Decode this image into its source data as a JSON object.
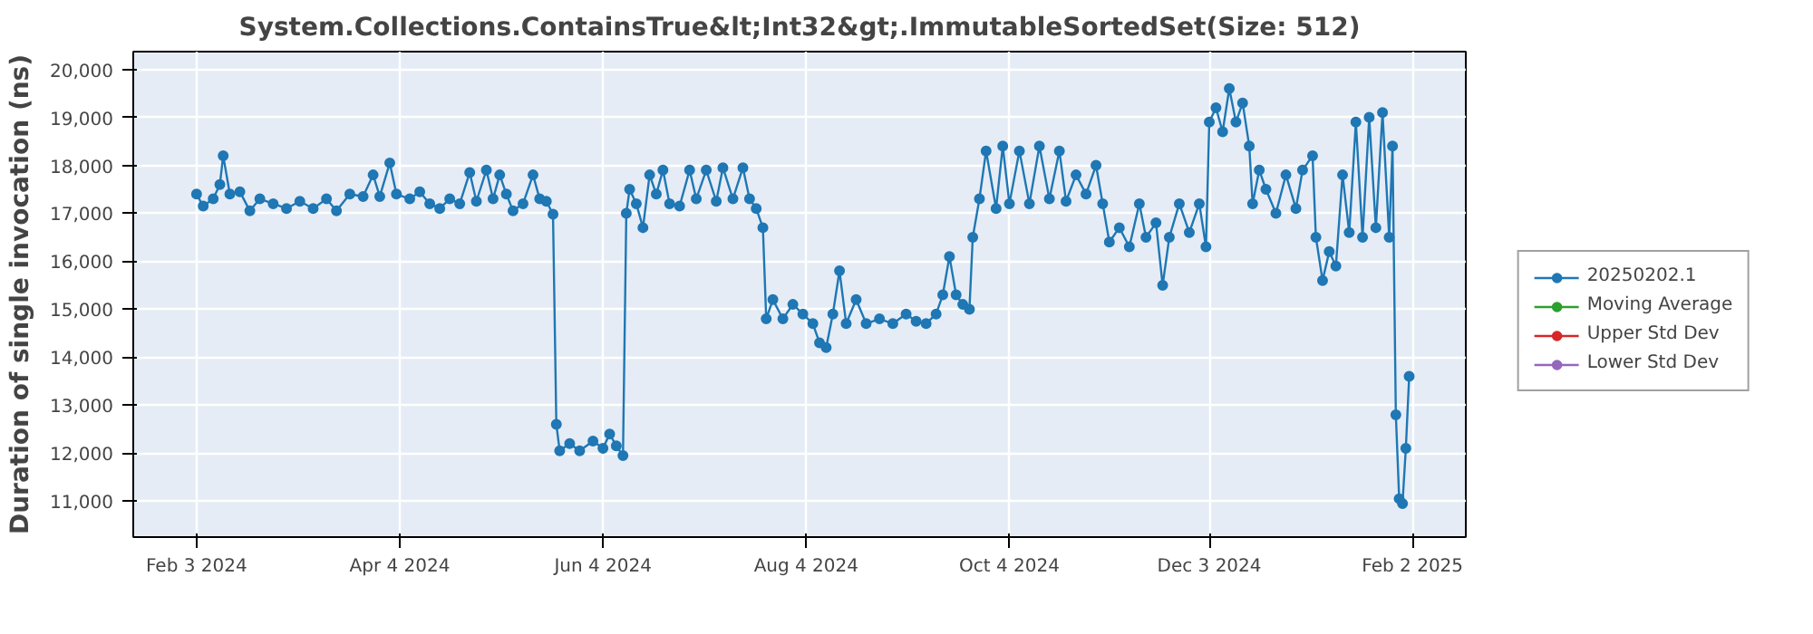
{
  "chart_data": {
    "type": "line",
    "title": "System.Collections.ContainsTrue&lt;Int32&gt;.ImmutableSortedSet(Size: 512)",
    "ylabel": "Duration of single invocation (ns)",
    "x": [
      "2024-02-03",
      "2024-02-05",
      "2024-02-08",
      "2024-02-10",
      "2024-02-11",
      "2024-02-13",
      "2024-02-16",
      "2024-02-19",
      "2024-02-22",
      "2024-02-26",
      "2024-03-01",
      "2024-03-05",
      "2024-03-09",
      "2024-03-13",
      "2024-03-16",
      "2024-03-20",
      "2024-03-24",
      "2024-03-27",
      "2024-03-29",
      "2024-04-01",
      "2024-04-03",
      "2024-04-07",
      "2024-04-10",
      "2024-04-13",
      "2024-04-16",
      "2024-04-19",
      "2024-04-22",
      "2024-04-25",
      "2024-04-27",
      "2024-04-30",
      "2024-05-02",
      "2024-05-04",
      "2024-05-06",
      "2024-05-08",
      "2024-05-11",
      "2024-05-14",
      "2024-05-16",
      "2024-05-18",
      "2024-05-20",
      "2024-05-21",
      "2024-05-22",
      "2024-05-25",
      "2024-05-28",
      "2024-06-01",
      "2024-06-04",
      "2024-06-06",
      "2024-06-08",
      "2024-06-10",
      "2024-06-11",
      "2024-06-12",
      "2024-06-14",
      "2024-06-16",
      "2024-06-18",
      "2024-06-20",
      "2024-06-22",
      "2024-06-24",
      "2024-06-27",
      "2024-06-30",
      "2024-07-02",
      "2024-07-05",
      "2024-07-08",
      "2024-07-10",
      "2024-07-13",
      "2024-07-16",
      "2024-07-18",
      "2024-07-20",
      "2024-07-22",
      "2024-07-23",
      "2024-07-25",
      "2024-07-28",
      "2024-07-31",
      "2024-08-03",
      "2024-08-06",
      "2024-08-08",
      "2024-08-10",
      "2024-08-12",
      "2024-08-14",
      "2024-08-16",
      "2024-08-19",
      "2024-08-22",
      "2024-08-26",
      "2024-08-30",
      "2024-09-03",
      "2024-09-06",
      "2024-09-09",
      "2024-09-12",
      "2024-09-14",
      "2024-09-16",
      "2024-09-18",
      "2024-09-20",
      "2024-09-22",
      "2024-09-23",
      "2024-09-25",
      "2024-09-27",
      "2024-09-30",
      "2024-10-02",
      "2024-10-04",
      "2024-10-07",
      "2024-10-10",
      "2024-10-13",
      "2024-10-16",
      "2024-10-19",
      "2024-10-21",
      "2024-10-24",
      "2024-10-27",
      "2024-10-30",
      "2024-11-01",
      "2024-11-03",
      "2024-11-06",
      "2024-11-09",
      "2024-11-12",
      "2024-11-14",
      "2024-11-17",
      "2024-11-19",
      "2024-11-21",
      "2024-11-24",
      "2024-11-27",
      "2024-11-30",
      "2024-12-02",
      "2024-12-03",
      "2024-12-05",
      "2024-12-07",
      "2024-12-09",
      "2024-12-11",
      "2024-12-13",
      "2024-12-15",
      "2024-12-16",
      "2024-12-18",
      "2024-12-20",
      "2024-12-23",
      "2024-12-26",
      "2024-12-29",
      "2024-12-31",
      "2025-01-03",
      "2025-01-04",
      "2025-01-06",
      "2025-01-08",
      "2025-01-10",
      "2025-01-12",
      "2025-01-14",
      "2025-01-16",
      "2025-01-18",
      "2025-01-20",
      "2025-01-22",
      "2025-01-24",
      "2025-01-26",
      "2025-01-27",
      "2025-01-28",
      "2025-01-29",
      "2025-01-30",
      "2025-01-31",
      "2025-02-01"
    ],
    "series": [
      {
        "name": "20250202.1",
        "color": "#1f77b4",
        "values": [
          17400,
          17150,
          17300,
          17600,
          18200,
          17400,
          17450,
          17050,
          17300,
          17200,
          17100,
          17250,
          17100,
          17300,
          17050,
          17400,
          17350,
          17800,
          17350,
          18050,
          17400,
          17300,
          17450,
          17200,
          17100,
          17300,
          17200,
          17850,
          17250,
          17900,
          17300,
          17800,
          17400,
          17050,
          17200,
          17800,
          17300,
          17250,
          16980,
          12600,
          12050,
          12200,
          12050,
          12250,
          12100,
          12400,
          12150,
          11950,
          17000,
          17500,
          17200,
          16700,
          17800,
          17400,
          17900,
          17200,
          17150,
          17900,
          17300,
          17900,
          17250,
          17950,
          17300,
          17950,
          17300,
          17100,
          16700,
          14800,
          15200,
          14800,
          15100,
          14900,
          14700,
          14300,
          14200,
          14900,
          15800,
          14700,
          15200,
          14700,
          14800,
          14700,
          14900,
          14750,
          14700,
          14900,
          15300,
          16100,
          15300,
          15100,
          15000,
          16500,
          17300,
          18300,
          17100,
          18400,
          17200,
          18300,
          17200,
          18400,
          17300,
          18300,
          17250,
          17800,
          17400,
          18000,
          17200,
          16400,
          16700,
          16300,
          17200,
          16500,
          16800,
          15500,
          16500,
          17200,
          16600,
          17200,
          16300,
          18900,
          19200,
          18700,
          19600,
          18900,
          19300,
          18400,
          17200,
          17900,
          17500,
          17000,
          17800,
          17100,
          17900,
          18200,
          16500,
          15600,
          16200,
          15900,
          17800,
          16600,
          18900,
          16500,
          19000,
          16700,
          19100,
          16500,
          18400,
          12800,
          11050,
          10950,
          12100,
          13600
        ]
      },
      {
        "name": "Moving Average",
        "color": "#2ca02c",
        "values": [
          null,
          null,
          null,
          null,
          null,
          null,
          null,
          null,
          null,
          null,
          null,
          null,
          null,
          null,
          null,
          null,
          null,
          null,
          null,
          null,
          null,
          null,
          null,
          null,
          null,
          null,
          null,
          null,
          null,
          null,
          null,
          null,
          null,
          null,
          null,
          null,
          null,
          null,
          null,
          null,
          null,
          null,
          null,
          null,
          null,
          null,
          null,
          null,
          null,
          null,
          null,
          null,
          null,
          null,
          null,
          null,
          null,
          null,
          null,
          null,
          null,
          null,
          null,
          null,
          null,
          null,
          null,
          null,
          null,
          null,
          null,
          null,
          null,
          null,
          null,
          null,
          null,
          null,
          null,
          null,
          null,
          null,
          null,
          null,
          null,
          null,
          null,
          null,
          null,
          null,
          null,
          null,
          null,
          null,
          null,
          null,
          null,
          null,
          null,
          null,
          null,
          null,
          null,
          null,
          null,
          null,
          null,
          null,
          null,
          null,
          null,
          null,
          null,
          null,
          null,
          null,
          null,
          null,
          null,
          null,
          null,
          null,
          null,
          null,
          null,
          null,
          null,
          null,
          null,
          null,
          null,
          null,
          null,
          null,
          null,
          null,
          null,
          null,
          null,
          null,
          null,
          null,
          null,
          null,
          null,
          null,
          null,
          null,
          null,
          null,
          null,
          null
        ]
      },
      {
        "name": "Upper Std Dev",
        "color": "#d62728",
        "values": [
          null,
          null,
          null,
          null,
          null,
          null,
          null,
          null,
          null,
          null,
          null,
          null,
          null,
          null,
          null,
          null,
          null,
          null,
          null,
          null,
          null,
          null,
          null,
          null,
          null,
          null,
          null,
          null,
          null,
          null,
          null,
          null,
          null,
          null,
          null,
          null,
          null,
          null,
          null,
          null,
          null,
          null,
          null,
          null,
          null,
          null,
          null,
          null,
          null,
          null,
          null,
          null,
          null,
          null,
          null,
          null,
          null,
          null,
          null,
          null,
          null,
          null,
          null,
          null,
          null,
          null,
          null,
          null,
          null,
          null,
          null,
          null,
          null,
          null,
          null,
          null,
          null,
          null,
          null,
          null,
          null,
          null,
          null,
          null,
          null,
          null,
          null,
          null,
          null,
          null,
          null,
          null,
          null,
          null,
          null,
          null,
          null,
          null,
          null,
          null,
          null,
          null,
          null,
          null,
          null,
          null,
          null,
          null,
          null,
          null,
          null,
          null,
          null,
          null,
          null,
          null,
          null,
          null,
          null,
          null,
          null,
          null,
          null,
          null,
          null,
          null,
          null,
          null,
          null,
          null,
          null,
          null,
          null,
          null,
          null,
          null,
          null,
          null,
          null,
          null,
          null,
          null,
          null,
          null,
          null,
          null,
          null,
          null,
          null,
          null,
          null,
          null
        ]
      },
      {
        "name": "Lower Std Dev",
        "color": "#9467bd",
        "values": [
          null,
          null,
          null,
          null,
          null,
          null,
          null,
          null,
          null,
          null,
          null,
          null,
          null,
          null,
          null,
          null,
          null,
          null,
          null,
          null,
          null,
          null,
          null,
          null,
          null,
          null,
          null,
          null,
          null,
          null,
          null,
          null,
          null,
          null,
          null,
          null,
          null,
          null,
          null,
          null,
          null,
          null,
          null,
          null,
          null,
          null,
          null,
          null,
          null,
          null,
          null,
          null,
          null,
          null,
          null,
          null,
          null,
          null,
          null,
          null,
          null,
          null,
          null,
          null,
          null,
          null,
          null,
          null,
          null,
          null,
          null,
          null,
          null,
          null,
          null,
          null,
          null,
          null,
          null,
          null,
          null,
          null,
          null,
          null,
          null,
          null,
          null,
          null,
          null,
          null,
          null,
          null,
          null,
          null,
          null,
          null,
          null,
          null,
          null,
          null,
          null,
          null,
          null,
          null,
          null,
          null,
          null,
          null,
          null,
          null,
          null,
          null,
          null,
          null,
          null,
          null,
          null,
          null,
          null,
          null,
          null,
          null,
          null,
          null,
          null,
          null,
          null,
          null,
          null,
          null,
          null,
          null,
          null,
          null,
          null,
          null,
          null,
          null,
          null,
          null,
          null,
          null,
          null,
          null,
          null,
          null,
          null,
          null,
          null,
          null,
          null,
          null
        ]
      }
    ],
    "xlim": [
      "2024-01-15",
      "2025-02-18"
    ],
    "ylim": [
      10250,
      20370
    ],
    "xticks": [
      {
        "value": "2024-02-03",
        "label": "Feb 3 2024"
      },
      {
        "value": "2024-04-04",
        "label": "Apr 4 2024"
      },
      {
        "value": "2024-06-04",
        "label": "Jun 4 2024"
      },
      {
        "value": "2024-08-04",
        "label": "Aug 4 2024"
      },
      {
        "value": "2024-10-04",
        "label": "Oct 4 2024"
      },
      {
        "value": "2024-12-03",
        "label": "Dec 3 2024"
      },
      {
        "value": "2025-02-02",
        "label": "Feb 2 2025"
      }
    ],
    "yticks": [
      {
        "value": 11000,
        "label": "11,000"
      },
      {
        "value": 12000,
        "label": "12,000"
      },
      {
        "value": 13000,
        "label": "13,000"
      },
      {
        "value": 14000,
        "label": "14,000"
      },
      {
        "value": 15000,
        "label": "15,000"
      },
      {
        "value": 16000,
        "label": "16,000"
      },
      {
        "value": 17000,
        "label": "17,000"
      },
      {
        "value": 18000,
        "label": "18,000"
      },
      {
        "value": 19000,
        "label": "19,000"
      },
      {
        "value": 20000,
        "label": "20,000"
      }
    ],
    "grid": true,
    "legend": "right",
    "marker": "circle",
    "line_style": "solid"
  }
}
